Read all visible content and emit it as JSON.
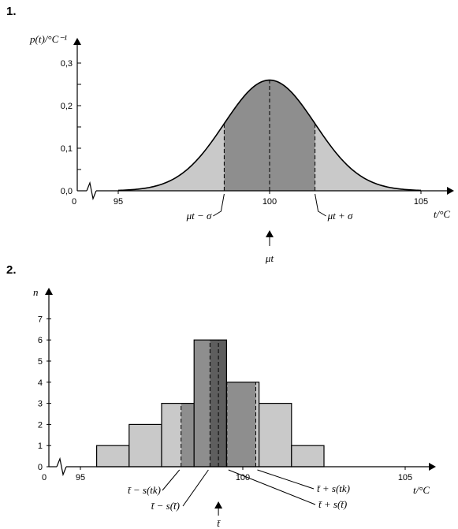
{
  "panels": [
    {
      "label": "1."
    },
    {
      "label": "2."
    }
  ],
  "colors": {
    "light": "#c9c9c9",
    "mid": "#8e8e8e",
    "dark": "#5e5e5e",
    "line": "#000000"
  },
  "chart_data": [
    {
      "type": "area",
      "ylabel": "p(t)/°C⁻¹",
      "xlabel": "t/°C",
      "mean": 100,
      "sigma": 1.5,
      "xlim": [
        95,
        105
      ],
      "ylim": [
        0,
        0.3
      ],
      "origin_label": "0",
      "x_ticks": [
        {
          "value": 95,
          "label": "95"
        },
        {
          "value": 100,
          "label": "100"
        },
        {
          "value": 105,
          "label": "105"
        }
      ],
      "y_ticks": [
        {
          "value": 0.0,
          "label": "0,0"
        },
        {
          "value": 0.1,
          "label": "0,1"
        },
        {
          "value": 0.2,
          "label": "0,2"
        },
        {
          "value": 0.3,
          "label": "0,3"
        }
      ],
      "annotations": {
        "lower": "μt − σ",
        "upper": "μt + σ",
        "mean": "μt"
      }
    },
    {
      "type": "bar",
      "ylabel": "n",
      "xlabel": "t/°C",
      "xlim": [
        95,
        105
      ],
      "ylim": [
        0,
        7
      ],
      "origin_label": "0",
      "bin_width": 1,
      "bins": [
        {
          "start": 95.5,
          "count": 1
        },
        {
          "start": 96.5,
          "count": 2
        },
        {
          "start": 97.5,
          "count": 3
        },
        {
          "start": 98.5,
          "count": 6
        },
        {
          "start": 99.5,
          "count": 4
        },
        {
          "start": 100.5,
          "count": 3
        },
        {
          "start": 101.5,
          "count": 1
        }
      ],
      "mean": 99.25,
      "s_tk": 1.15,
      "s_tbar": 0.26,
      "x_ticks": [
        {
          "value": 95,
          "label": "95"
        },
        {
          "value": 100,
          "label": "100"
        },
        {
          "value": 105,
          "label": "105"
        }
      ],
      "y_ticks": [
        {
          "value": 0,
          "label": "0"
        },
        {
          "value": 1,
          "label": "1"
        },
        {
          "value": 2,
          "label": "2"
        },
        {
          "value": 3,
          "label": "3"
        },
        {
          "value": 4,
          "label": "4"
        },
        {
          "value": 5,
          "label": "5"
        },
        {
          "value": 6,
          "label": "6"
        },
        {
          "value": 7,
          "label": "7"
        }
      ],
      "annotations": {
        "lower_tk": "t̄ − s(tk)",
        "lower_tbar": "t̄ − s(t̄)",
        "upper_tk": "t̄ + s(tk)",
        "upper_tbar": "t̄ + s(t̄)",
        "mean": "t̄"
      }
    }
  ]
}
